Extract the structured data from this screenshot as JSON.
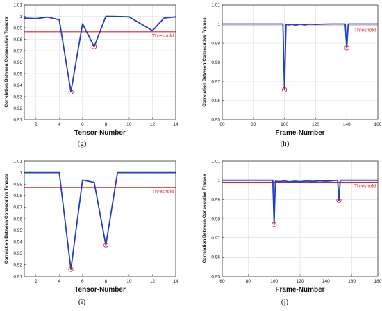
{
  "chart_data": [
    {
      "type": "line",
      "panel_label": "(g)",
      "xlabel": "Tensor-Number",
      "ylabel": "Correlation Between Consecutive Tensors",
      "xlim": [
        1,
        14
      ],
      "ylim": [
        0.91,
        1.01
      ],
      "xticks": [
        2,
        4,
        6,
        8,
        10,
        12,
        14
      ],
      "yticks": [
        0.91,
        0.92,
        0.93,
        0.94,
        0.95,
        0.96,
        0.97,
        0.98,
        0.99,
        1,
        1.01
      ],
      "grid": true,
      "threshold": {
        "label": "Threshold",
        "value": 0.9865,
        "color": "#d62728"
      },
      "series": [
        {
          "color": "#1f3fbf",
          "x": [
            1,
            2,
            3,
            4,
            5,
            6,
            7,
            8,
            9,
            10,
            11,
            12,
            13,
            14
          ],
          "values": [
            0.9985,
            0.998,
            0.9993,
            0.997,
            0.934,
            0.9935,
            0.9735,
            1.0,
            0.9998,
            0.9995,
            0.9935,
            0.9875,
            0.9985,
            0.9995
          ]
        }
      ],
      "markers": [
        {
          "x": 5,
          "y": 0.934
        },
        {
          "x": 7,
          "y": 0.9735
        }
      ]
    },
    {
      "type": "line",
      "panel_label": "(h)",
      "xlabel": "Frame-Number",
      "ylabel": "Correlation Between Consecutive Frames",
      "xlim": [
        60,
        160
      ],
      "ylim": [
        0.95,
        1.01
      ],
      "xticks": [
        60,
        80,
        100,
        120,
        140,
        160
      ],
      "yticks": [
        0.95,
        0.96,
        0.97,
        0.98,
        0.99,
        1,
        1.01
      ],
      "grid": true,
      "threshold": {
        "label": "Threshold",
        "value": 0.999,
        "color": "#d62728"
      },
      "series": [
        {
          "color": "#1f3fbf",
          "x": [
            60,
            99,
            100,
            101,
            103,
            105,
            107,
            110,
            113,
            116,
            120,
            125,
            130,
            139,
            140,
            141,
            160
          ],
          "values": [
            1.0,
            1.0,
            0.9655,
            0.9998,
            0.9996,
            0.9999,
            0.9994,
            0.9999,
            0.9996,
            0.9999,
            0.9998,
            0.9999,
            1.0,
            1.0,
            0.9875,
            1.0,
            1.0
          ]
        }
      ],
      "markers": [
        {
          "x": 100,
          "y": 0.9655
        },
        {
          "x": 140,
          "y": 0.9875
        }
      ]
    },
    {
      "type": "line",
      "panel_label": "(i)",
      "xlabel": "Tensor-Number",
      "ylabel": "Correlation Between Consecutive Tensors",
      "xlim": [
        1,
        14
      ],
      "ylim": [
        0.91,
        1.01
      ],
      "xticks": [
        2,
        4,
        6,
        8,
        10,
        12,
        14
      ],
      "yticks": [
        0.91,
        0.92,
        0.93,
        0.94,
        0.95,
        0.96,
        0.97,
        0.98,
        0.99,
        1,
        1.01
      ],
      "grid": false,
      "threshold": {
        "label": "Threshold",
        "value": 0.987,
        "color": "#d62728"
      },
      "series": [
        {
          "color": "#1f3fbf",
          "x": [
            1,
            2,
            3,
            4,
            5,
            6,
            7,
            8,
            9,
            10,
            11,
            12,
            13,
            14
          ],
          "values": [
            1.0,
            1.0,
            1.0,
            1.0,
            0.916,
            0.9935,
            0.9915,
            0.937,
            1.0,
            1.0,
            1.0,
            1.0,
            1.0,
            1.0
          ]
        }
      ],
      "markers": [
        {
          "x": 5,
          "y": 0.916
        },
        {
          "x": 8,
          "y": 0.937
        }
      ]
    },
    {
      "type": "line",
      "panel_label": "(j)",
      "xlabel": "Frame-Number",
      "ylabel": "Correlation Between Consecutive Frames",
      "xlim": [
        60,
        180
      ],
      "ylim": [
        0.95,
        1.01
      ],
      "xticks": [
        60,
        80,
        100,
        120,
        140,
        160,
        180
      ],
      "yticks": [
        0.95,
        0.96,
        0.97,
        0.98,
        0.99,
        1,
        1.01
      ],
      "grid": true,
      "threshold": {
        "label": "Threshold",
        "value": 0.999,
        "color": "#d62728"
      },
      "series": [
        {
          "color": "#1f3fbf",
          "x": [
            60,
            99,
            100,
            101,
            104,
            108,
            112,
            116,
            120,
            125,
            130,
            135,
            140,
            145,
            149,
            150,
            151,
            155,
            160,
            170,
            180
          ],
          "values": [
            1.0,
            1.0,
            0.977,
            0.9995,
            0.9993,
            0.9996,
            0.9992,
            0.9995,
            0.9993,
            0.9996,
            0.9994,
            0.9997,
            0.9995,
            0.9998,
            1.0,
            0.9895,
            1.0,
            1.0,
            1.0,
            1.0,
            1.0
          ]
        }
      ],
      "markers": [
        {
          "x": 100,
          "y": 0.977
        },
        {
          "x": 150,
          "y": 0.9895
        }
      ]
    }
  ]
}
